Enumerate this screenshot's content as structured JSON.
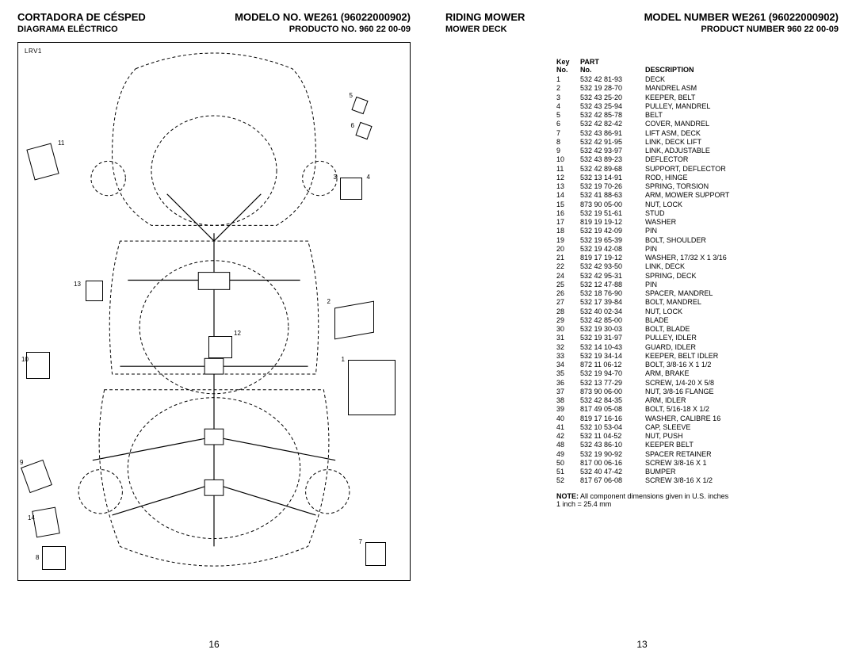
{
  "left": {
    "title_left": "CORTADORA DE CÉSPED",
    "title_right": "MODELO NO. WE261 (96022000902)",
    "sub_left": "DIAGRAMA ELÉCTRICO",
    "sub_right": "PRODUCTO NO. 960 22 00-09",
    "diagram_label": "LRV1",
    "page_number": "16",
    "callouts": [
      "1",
      "2",
      "3",
      "4",
      "5",
      "6",
      "7",
      "8",
      "9",
      "10",
      "11",
      "12",
      "13",
      "14"
    ]
  },
  "right": {
    "title_left": "RIDING MOWER",
    "title_right": "MODEL NUMBER WE261 (96022000902)",
    "sub_left": "MOWER DECK",
    "sub_right": "PRODUCT NUMBER 960 22 00-09",
    "page_number": "13",
    "col_key_1": "Key",
    "col_key_2": "No.",
    "col_part_1": "PART",
    "col_part_2": "No.",
    "col_desc": "DESCRIPTION",
    "note_label": "NOTE:",
    "note_text1": " All component dimensions given in U.S. inches",
    "note_text2": "1 inch = 25.4 mm",
    "parts": [
      {
        "k": "1",
        "p": "532 42 81-93",
        "d": "DECK"
      },
      {
        "k": "2",
        "p": "532 19 28-70",
        "d": "MANDREL ASM"
      },
      {
        "k": "3",
        "p": "532 43 25-20",
        "d": "KEEPER, BELT"
      },
      {
        "k": "4",
        "p": "532 43 25-94",
        "d": "PULLEY, MANDREL"
      },
      {
        "k": "5",
        "p": "532 42 85-78",
        "d": "BELT"
      },
      {
        "k": "6",
        "p": "532 42 82-42",
        "d": "COVER, MANDREL"
      },
      {
        "k": "7",
        "p": "532 43 86-91",
        "d": "LIFT ASM, DECK"
      },
      {
        "k": "8",
        "p": "532 42 91-95",
        "d": "LINK, DECK LIFT"
      },
      {
        "k": "9",
        "p": "532 42 93-97",
        "d": "LINK, ADJUSTABLE"
      },
      {
        "k": "10",
        "p": "532 43 89-23",
        "d": "DEFLECTOR"
      },
      {
        "k": "11",
        "p": "532 42 89-68",
        "d": "SUPPORT, DEFLECTOR"
      },
      {
        "k": "12",
        "p": "532 13 14-91",
        "d": "ROD, HINGE"
      },
      {
        "k": "13",
        "p": "532 19 70-26",
        "d": "SPRING, TORSION"
      },
      {
        "k": "14",
        "p": "532 41 88-63",
        "d": "ARM, MOWER SUPPORT"
      },
      {
        "k": "15",
        "p": "873 90 05-00",
        "d": "NUT, LOCK"
      },
      {
        "k": "16",
        "p": "532 19 51-61",
        "d": "STUD"
      },
      {
        "k": "17",
        "p": "819 19 19-12",
        "d": "WASHER"
      },
      {
        "k": "18",
        "p": "532 19 42-09",
        "d": "PIN"
      },
      {
        "k": "19",
        "p": "532 19 65-39",
        "d": "BOLT, SHOULDER"
      },
      {
        "k": "20",
        "p": "532 19 42-08",
        "d": "PIN"
      },
      {
        "k": "21",
        "p": "819 17 19-12",
        "d": "WASHER, 17/32 X 1 3/16"
      },
      {
        "k": "22",
        "p": "532 42 93-50",
        "d": "LINK, DECK"
      },
      {
        "k": "24",
        "p": "532 42 95-31",
        "d": "SPRING, DECK"
      },
      {
        "k": "25",
        "p": "532 12 47-88",
        "d": "PIN"
      },
      {
        "k": "26",
        "p": "532 18 76-90",
        "d": "SPACER, MANDREL"
      },
      {
        "k": "27",
        "p": "532 17 39-84",
        "d": "BOLT, MANDREL"
      },
      {
        "k": "28",
        "p": "532 40 02-34",
        "d": "NUT, LOCK"
      },
      {
        "k": "29",
        "p": "532 42 85-00",
        "d": "BLADE"
      },
      {
        "k": "30",
        "p": "532 19 30-03",
        "d": "BOLT, BLADE"
      },
      {
        "k": "31",
        "p": "532 19 31-97",
        "d": "PULLEY, IDLER"
      },
      {
        "k": "32",
        "p": "532 14 10-43",
        "d": "GUARD, IDLER"
      },
      {
        "k": "33",
        "p": "532 19 34-14",
        "d": "KEEPER, BELT IDLER"
      },
      {
        "k": "34",
        "p": "872 11 06-12",
        "d": "BOLT, 3/8-16 X 1 1/2"
      },
      {
        "k": "35",
        "p": "532 19 94-70",
        "d": "ARM, BRAKE"
      },
      {
        "k": "36",
        "p": "532 13 77-29",
        "d": "SCREW, 1/4-20 X 5/8"
      },
      {
        "k": "37",
        "p": "873 90 06-00",
        "d": "NUT, 3/8-16 FLANGE"
      },
      {
        "k": "38",
        "p": "532 42 84-35",
        "d": "ARM, IDLER"
      },
      {
        "k": "39",
        "p": "817 49 05-08",
        "d": "BOLT, 5/16-18 X 1/2"
      },
      {
        "k": "40",
        "p": "819 17 16-16",
        "d": "WASHER, CALIBRE 16"
      },
      {
        "k": "41",
        "p": "532 10 53-04",
        "d": "CAP, SLEEVE"
      },
      {
        "k": "42",
        "p": "532 11 04-52",
        "d": "NUT, PUSH"
      },
      {
        "k": "48",
        "p": "532 43 86-10",
        "d": "KEEPER BELT"
      },
      {
        "k": "49",
        "p": "532 19 90-92",
        "d": "SPACER RETAINER"
      },
      {
        "k": "50",
        "p": "817 00 06-16",
        "d": "SCREW 3/8-16 X 1"
      },
      {
        "k": "51",
        "p": "532 40 47-42",
        "d": "BUMPER"
      },
      {
        "k": "52",
        "p": "817 67 06-08",
        "d": "SCREW 3/8-16 X 1/2"
      }
    ]
  },
  "style": {
    "text_color": "#000000",
    "bg_color": "#ffffff",
    "dash": "4,3"
  }
}
